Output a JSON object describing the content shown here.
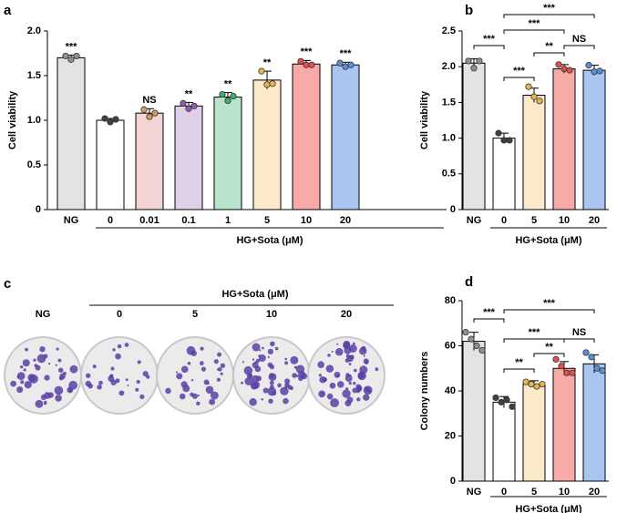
{
  "chart_data": [
    {
      "type": "bar",
      "panel_label": "a",
      "y_label": "Cell viability",
      "group_label": "HG+Sota (μM)",
      "categories": [
        "NG",
        "0",
        "0.01",
        "0.1",
        "1",
        "5",
        "10",
        "20"
      ],
      "values": [
        1.7,
        1.0,
        1.08,
        1.16,
        1.26,
        1.45,
        1.63,
        1.62
      ],
      "errors": [
        0.03,
        0.02,
        0.05,
        0.04,
        0.05,
        0.1,
        0.04,
        0.03
      ],
      "points": [
        [
          1.72,
          1.68,
          1.72
        ],
        [
          1.02,
          0.98,
          1.01
        ],
        [
          1.12,
          1.04,
          1.08
        ],
        [
          1.19,
          1.13,
          1.16
        ],
        [
          1.29,
          1.22,
          1.27
        ],
        [
          1.55,
          1.4,
          1.41
        ],
        [
          1.66,
          1.62,
          1.62
        ],
        [
          1.64,
          1.6,
          1.62
        ]
      ],
      "colors": [
        "#e3e3e3",
        "#ffffff",
        "#f3d4d4",
        "#dfd1e8",
        "#b8e4cd",
        "#fce9c9",
        "#f7aaa8",
        "#aac6f0"
      ],
      "point_colors": [
        "#909090",
        "#404040",
        "#d59a6a",
        "#9a59b8",
        "#3fae6a",
        "#e6b64c",
        "#e2504c",
        "#5b8fd6"
      ],
      "significance": [
        "***",
        null,
        "NS",
        "**",
        "**",
        "**",
        "***",
        "***"
      ],
      "ylim": [
        0,
        2.0
      ],
      "yticks": [
        0,
        0.5,
        {
          "value": 1,
          "label": "1.0"
        },
        1.5,
        {
          "value": 2,
          "label": "2.0"
        }
      ]
    },
    {
      "type": "bar",
      "panel_label": "b",
      "y_label": "Cell viability",
      "group_label": "HG+Sota (μM)",
      "categories": [
        "NG",
        "0",
        "5",
        "10",
        "20"
      ],
      "values": [
        2.05,
        1.0,
        1.6,
        1.97,
        1.95
      ],
      "errors": [
        0.06,
        0.07,
        0.1,
        0.06,
        0.07
      ],
      "points": [
        [
          2.08,
          1.98,
          2.08
        ],
        [
          1.07,
          0.97,
          0.97
        ],
        [
          1.72,
          1.58,
          1.52
        ],
        [
          2.03,
          1.97,
          1.95
        ],
        [
          2.02,
          1.93,
          1.94
        ]
      ],
      "colors": [
        "#e3e3e3",
        "#ffffff",
        "#fce9c9",
        "#f7aaa8",
        "#aac6f0"
      ],
      "point_colors": [
        "#909090",
        "#404040",
        "#e6b64c",
        "#e2504c",
        "#5b8fd6"
      ],
      "comparisons": [
        "***",
        "***",
        "***",
        "***",
        "**",
        "NS"
      ],
      "ylim": [
        0,
        2.5
      ],
      "yticks": [
        0,
        0.5,
        {
          "value": 1,
          "label": "1.0"
        },
        1.5,
        {
          "value": 2,
          "label": "2.0"
        },
        2.5
      ]
    },
    {
      "type": "bar",
      "panel_label": "d",
      "y_label": "Colony numbers",
      "group_label": "HG+Sota (μM)",
      "categories": [
        "NG",
        "0",
        "5",
        "10",
        "20"
      ],
      "values": [
        62,
        35,
        43,
        50,
        52
      ],
      "errors": [
        4,
        2.5,
        1.5,
        3,
        4
      ],
      "points": [
        [
          66,
          63,
          60,
          58
        ],
        [
          37,
          35,
          36,
          33
        ],
        [
          44,
          43,
          42,
          43
        ],
        [
          54,
          51,
          48,
          48
        ],
        [
          57,
          55,
          50,
          49
        ]
      ],
      "colors": [
        "#e3e3e3",
        "#ffffff",
        "#fce9c9",
        "#f7aaa8",
        "#aac6f0"
      ],
      "point_colors": [
        "#909090",
        "#404040",
        "#e6b64c",
        "#e2504c",
        "#5b8fd6"
      ],
      "comparisons": [
        "***",
        "**",
        "***",
        "***",
        "**",
        "NS"
      ],
      "ylim": [
        0,
        80
      ],
      "yticks": [
        0,
        20,
        40,
        60,
        80
      ]
    }
  ],
  "images": {
    "panel_label": "c",
    "group_label": "HG+Sota (μM)",
    "labels": [
      "NG",
      "0",
      "5",
      "10",
      "20"
    ]
  }
}
